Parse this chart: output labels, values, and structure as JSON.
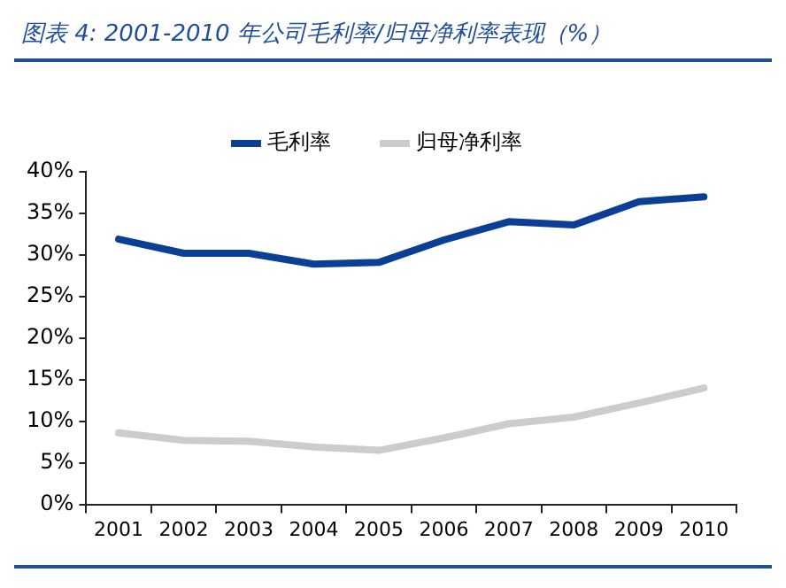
{
  "chart_data": {
    "type": "line",
    "title": "图表 4:  2001-2010 年公司毛利率/归母净利率表现（%）",
    "categories": [
      "2001",
      "2002",
      "2003",
      "2004",
      "2005",
      "2006",
      "2007",
      "2008",
      "2009",
      "2010"
    ],
    "series": [
      {
        "name": "毛利率",
        "color": "#0b3f96",
        "values": [
          31.9,
          30.2,
          30.2,
          28.9,
          29.1,
          31.8,
          34.0,
          33.6,
          36.4,
          37.0
        ]
      },
      {
        "name": "归母净利率",
        "color": "#cccccc",
        "values": [
          8.6,
          7.7,
          7.6,
          6.9,
          6.5,
          8.0,
          9.7,
          10.5,
          12.2,
          14.0
        ]
      }
    ],
    "ylim": [
      0,
      40
    ],
    "yticks": [
      {
        "value": 0,
        "label": "0%"
      },
      {
        "value": 5,
        "label": "5%"
      },
      {
        "value": 10,
        "label": "10%"
      },
      {
        "value": 15,
        "label": "15%"
      },
      {
        "value": 20,
        "label": "20%"
      },
      {
        "value": 25,
        "label": "25%"
      },
      {
        "value": 30,
        "label": "30%"
      },
      {
        "value": 35,
        "label": "35%"
      },
      {
        "value": 40,
        "label": "40%"
      }
    ],
    "grid": false,
    "legend": "top",
    "marker": "none",
    "line_style": "solid"
  }
}
